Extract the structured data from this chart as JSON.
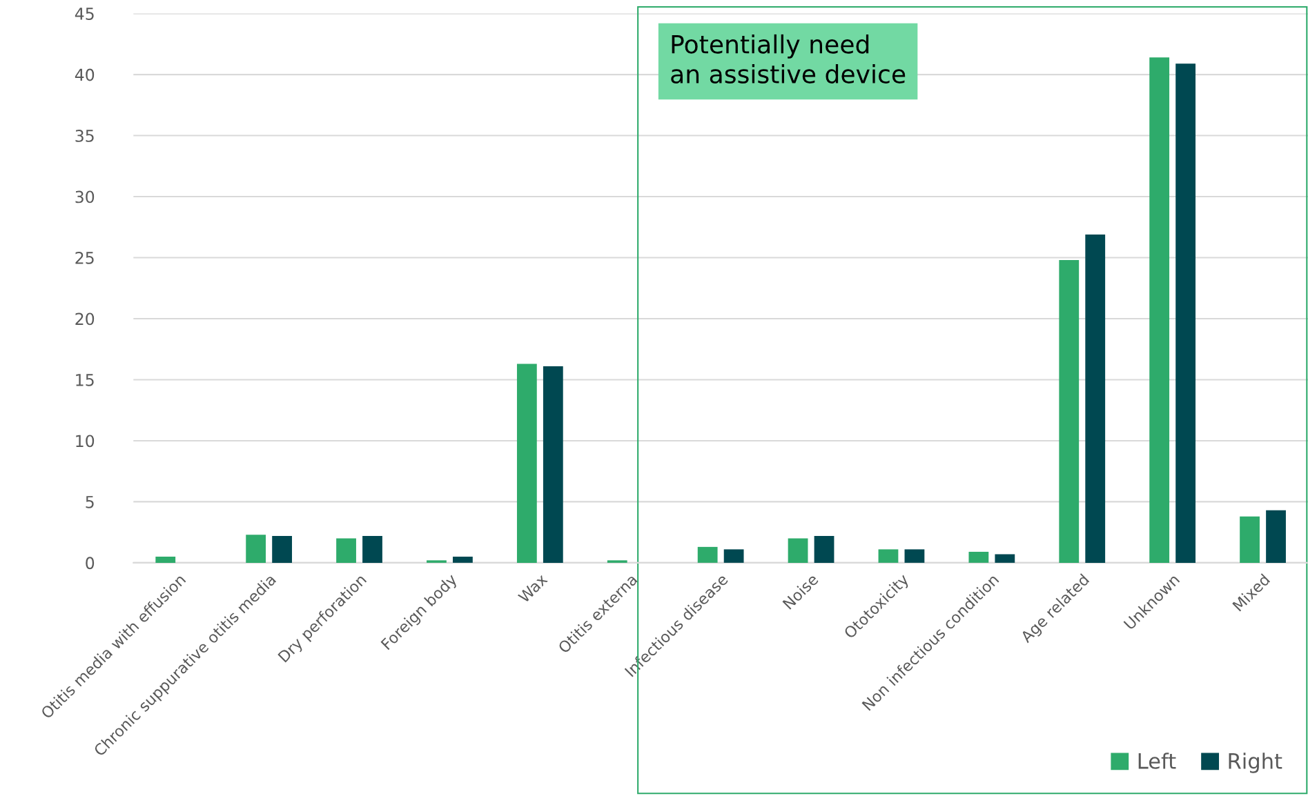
{
  "chart_data": {
    "type": "bar",
    "categories": [
      "Otitis media with effusion",
      "Chronic suppurative otitis media",
      "Dry perforation",
      "Foreign body",
      "Wax",
      "Otitis externa",
      "Infectious disease",
      "Noise",
      "Ototoxicity",
      "Non infectious condition",
      "Age related",
      "Unknown",
      "Mixed"
    ],
    "series": [
      {
        "name": "Left",
        "color": "#2eab6b",
        "values": [
          0.5,
          2.3,
          2.0,
          0.2,
          16.3,
          0.2,
          1.3,
          2.0,
          1.1,
          0.9,
          24.8,
          41.4,
          3.8
        ]
      },
      {
        "name": "Right",
        "color": "#004851",
        "values": [
          0,
          2.2,
          2.2,
          0.5,
          16.1,
          0,
          1.1,
          2.2,
          1.1,
          0.7,
          26.9,
          40.9,
          4.3
        ]
      }
    ],
    "ylim": [
      0,
      45
    ],
    "yticks": [
      0,
      5,
      10,
      15,
      20,
      25,
      30,
      35,
      40,
      45
    ],
    "grid": "y",
    "legend": "bottom right",
    "annotations": [
      "Potentially need\nan assistive device"
    ]
  }
}
